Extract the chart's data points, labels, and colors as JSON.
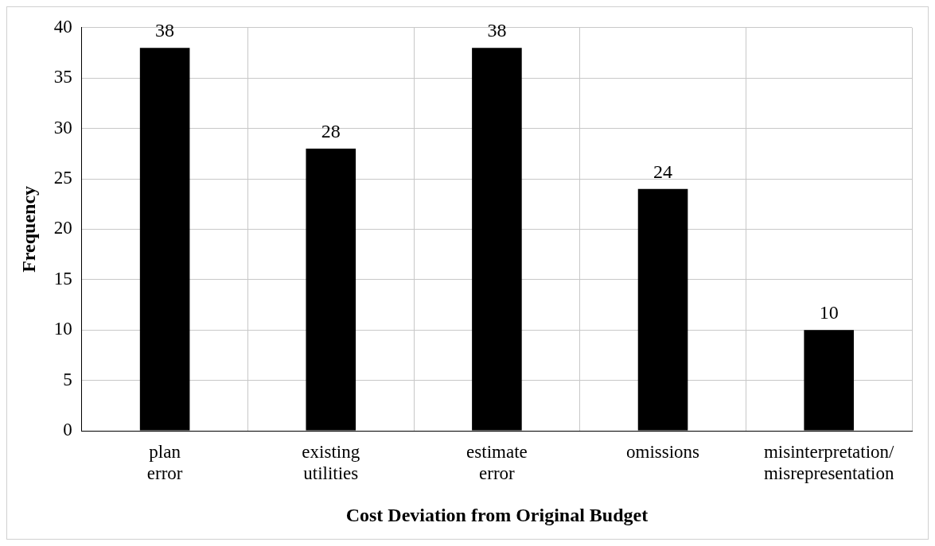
{
  "chart_data": {
    "type": "bar",
    "xlabel": "Cost Deviation from Original Budget",
    "ylabel": "Frequency",
    "categories": [
      "plan error",
      "existing utilities",
      "estimate error",
      "omissions",
      "misinterpretation/misrepresentation"
    ],
    "values": [
      38,
      28,
      38,
      24,
      10
    ],
    "color": "#000000",
    "ylim": [
      0,
      40
    ],
    "yticks": [
      0,
      5,
      10,
      15,
      20,
      25,
      30,
      35,
      40
    ],
    "grid": true,
    "data_labels": true
  }
}
